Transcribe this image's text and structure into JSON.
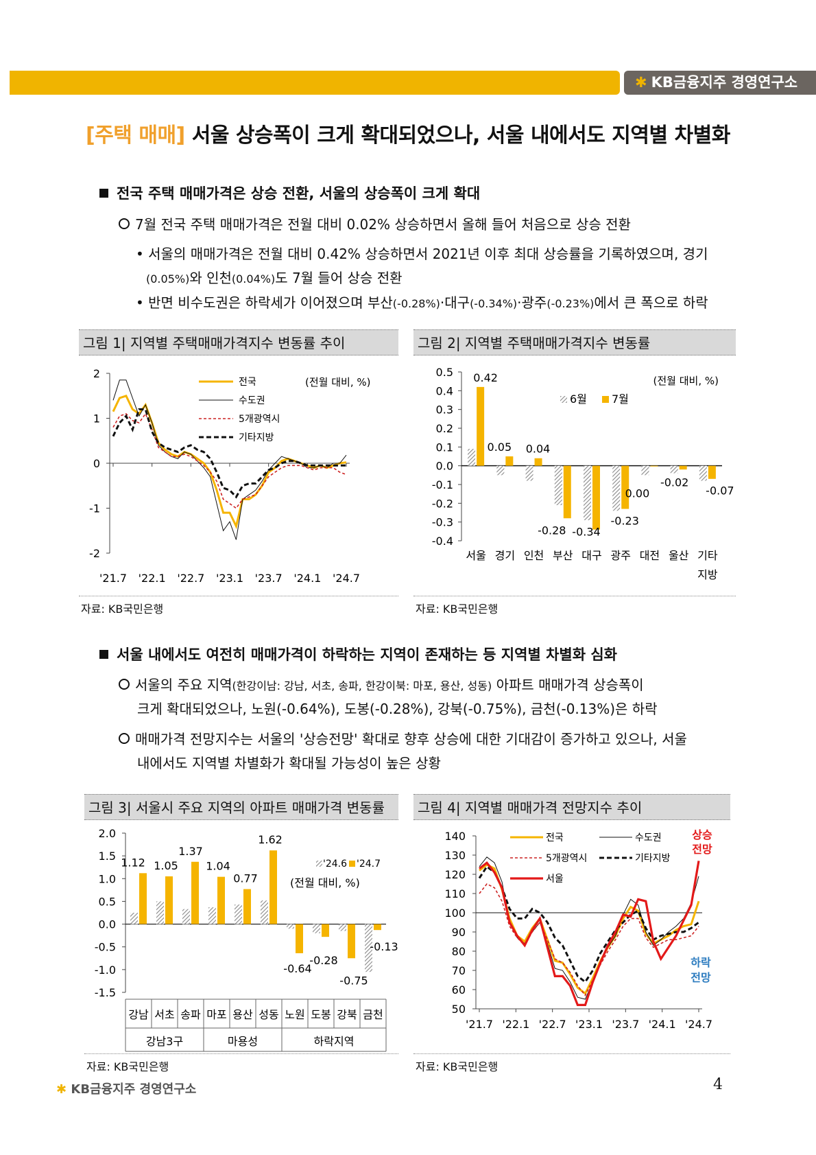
{
  "header": {
    "brand": "KB금융지주 경영연구소",
    "brand_icon": "kb-star-icon"
  },
  "title": {
    "tag": "[주택 매매]",
    "text": "서울 상승폭이 크게 확대되었으나, 서울 내에서도 지역별 차별화"
  },
  "section1": {
    "heading": "전국 주택 매매가격은 상승 전환, 서울의 상승폭이 크게 확대",
    "bullet": "7월 전국 주택 매매가격은 전월 대비 0.02% 상승하면서 올해 들어 처음으로 상승 전환",
    "sub1_line1": "• 서울의 매매가격은 전월 대비 0.42% 상승하면서 2021년 이후 최대 상승률을 기록하였으며, 경기",
    "sub1_line2_a": "(0.05%)",
    "sub1_line2_b": "와 인천",
    "sub1_line2_c": "(0.04%)",
    "sub1_line2_d": "도 7월 들어 상승 전환",
    "sub2_a": "• 반면 비수도권은 하락세가 이어졌으며 부산",
    "sub2_b": "(-0.28%)",
    "sub2_c": "·대구",
    "sub2_d": "(-0.34%)",
    "sub2_e": "·광주",
    "sub2_f": "(-0.23%)",
    "sub2_g": "에서 큰 폭으로 하락"
  },
  "section2": {
    "heading": "서울 내에서도 여전히 매매가격이 하락하는 지역이 존재하는 등 지역별 차별화 심화",
    "b1_a": "서울의 주요 지역",
    "b1_b": "(한강이남: 강남, 서초, 송파, 한강이북: 마포, 용산, 성동)",
    "b1_c": " 아파트 매매가격 상승폭이",
    "b1_line2": "크게 확대되었으나, 노원(-0.64%), 도봉(-0.28%), 강북(-0.75%), 금천(-0.13%)은 하락",
    "b2_line1": "매매가격 전망지수는 서울의 '상승전망' 확대로 향후 상승에 대한 기대감이 증가하고 있으나, 서울",
    "b2_line2": "내에서도 지역별 차별화가 확대될 가능성이 높은 상황"
  },
  "figures": {
    "fig1_title": "그림 1| 지역별 주택매매가격지수 변동률 추이",
    "fig2_title": "그림 2| 지역별 주택매매가격지수 변동률",
    "fig3_title": "그림 3| 서울시 주요 지역의 아파트 매매가격 변동률",
    "fig4_title": "그림 4| 지역별 매매가격 전망지수 추이",
    "source": "자료: KB국민은행"
  },
  "chart_data": [
    {
      "type": "line",
      "title": "지역별 주택매매가격지수 변동률 추이",
      "unit_note": "(전월 대비, %)",
      "ylim": [
        -2,
        2
      ],
      "yticks": [
        "2",
        "1",
        "0",
        "-1",
        "-2"
      ],
      "xticks": [
        "'21.7",
        "'22.1",
        "'22.7",
        "'23.1",
        "'23.7",
        "'24.1",
        "'24.7"
      ],
      "series": [
        {
          "name": "전국",
          "color": "#f5b400",
          "values": [
            1.15,
            1.45,
            1.5,
            1.2,
            1.1,
            1.3,
            0.9,
            0.45,
            0.3,
            0.2,
            0.15,
            0.25,
            0.2,
            0.1,
            0.0,
            -0.2,
            -0.6,
            -1.1,
            -1.1,
            -1.4,
            -0.8,
            -0.8,
            -0.7,
            -0.5,
            -0.2,
            -0.1,
            0.05,
            0.1,
            0.05,
            0.0,
            -0.05,
            -0.1,
            -0.05,
            -0.1,
            -0.05,
            0.0,
            0.02
          ]
        },
        {
          "name": "수도권",
          "color": "#111111",
          "values": [
            1.4,
            1.85,
            1.85,
            1.45,
            1.05,
            1.3,
            0.9,
            0.4,
            0.25,
            0.15,
            0.1,
            0.25,
            0.2,
            0.05,
            -0.1,
            -0.3,
            -0.9,
            -1.5,
            -1.3,
            -1.7,
            -0.8,
            -0.7,
            -0.6,
            -0.4,
            -0.15,
            0.0,
            0.15,
            0.1,
            0.05,
            0.0,
            -0.1,
            -0.1,
            -0.05,
            -0.1,
            0.0,
            0.0,
            0.18
          ]
        },
        {
          "name": "5개광역시",
          "color": "#cc2222",
          "values": [
            0.8,
            1.05,
            1.1,
            0.95,
            0.9,
            1.1,
            0.75,
            0.35,
            0.25,
            0.15,
            0.15,
            0.2,
            0.15,
            0.05,
            -0.05,
            -0.2,
            -0.4,
            -0.8,
            -0.9,
            -1.0,
            -0.8,
            -0.75,
            -0.7,
            -0.5,
            -0.3,
            -0.2,
            -0.1,
            -0.05,
            -0.05,
            -0.05,
            -0.1,
            -0.15,
            -0.1,
            -0.1,
            -0.1,
            -0.2,
            -0.25
          ]
        },
        {
          "name": "기타지방",
          "color": "#111111",
          "values": [
            0.6,
            0.9,
            1.05,
            0.75,
            1.2,
            1.2,
            0.7,
            0.45,
            0.35,
            0.3,
            0.25,
            0.35,
            0.4,
            0.3,
            0.25,
            0.1,
            -0.2,
            -0.55,
            -0.6,
            -0.75,
            -0.5,
            -0.45,
            -0.45,
            -0.3,
            -0.15,
            -0.1,
            0.0,
            0.05,
            0.05,
            0.0,
            -0.05,
            -0.05,
            -0.05,
            -0.05,
            -0.05,
            -0.05,
            -0.05
          ]
        }
      ]
    },
    {
      "type": "bar",
      "title": "지역별 주택매매가격지수 변동률",
      "unit_note": "(전월 대비, %)",
      "ylim": [
        -0.4,
        0.5
      ],
      "yticks": [
        "0.5",
        "0.4",
        "0.3",
        "0.2",
        "0.1",
        "0.0",
        "-0.1",
        "-0.2",
        "-0.3",
        "-0.4"
      ],
      "categories": [
        "서울",
        "경기",
        "인천",
        "부산",
        "대구",
        "광주",
        "대전",
        "울산",
        "기타"
      ],
      "category_sub": [
        "",
        "",
        "",
        "",
        "",
        "",
        "",
        "",
        "지방"
      ],
      "series": [
        {
          "name": "6월",
          "values": [
            0.09,
            -0.05,
            -0.08,
            -0.21,
            -0.29,
            -0.24,
            -0.05,
            -0.04,
            -0.08
          ]
        },
        {
          "name": "7월",
          "values": [
            0.42,
            0.05,
            0.04,
            -0.28,
            -0.34,
            -0.23,
            0.0,
            -0.02,
            -0.07
          ]
        }
      ],
      "data_labels": [
        "0.42",
        "0.05",
        "0.04",
        "-0.28",
        "-0.34",
        "-0.23",
        "0.00",
        "-0.02",
        "-0.07"
      ]
    },
    {
      "type": "bar",
      "title": "서울시 주요 지역의 아파트 매매가격 변동률",
      "unit_note": "(전월 대비, %)",
      "ylim": [
        -1.5,
        2.0
      ],
      "yticks": [
        "2.0",
        "1.5",
        "1.0",
        "0.5",
        "0.0",
        "-0.5",
        "-1.0",
        "-1.5"
      ],
      "categories": [
        "강남",
        "서초",
        "송파",
        "마포",
        "용산",
        "성동",
        "노원",
        "도봉",
        "강북",
        "금천"
      ],
      "groups": [
        "강남3구",
        "마용성",
        "하락지역"
      ],
      "series": [
        {
          "name": "'24.6",
          "values": [
            0.25,
            0.5,
            0.33,
            0.37,
            0.43,
            0.52,
            -0.1,
            -0.2,
            -0.15,
            -1.05
          ]
        },
        {
          "name": "'24.7",
          "values": [
            1.12,
            1.05,
            1.37,
            1.04,
            0.77,
            1.62,
            -0.64,
            -0.28,
            -0.75,
            -0.13
          ]
        }
      ],
      "data_labels": [
        "1.12",
        "1.05",
        "1.37",
        "1.04",
        "0.77",
        "1.62",
        "-0.64",
        "-0.28",
        "-0.75",
        "-0.13"
      ]
    },
    {
      "type": "line",
      "title": "지역별 매매가격 전망지수 추이",
      "ylim": [
        50,
        140
      ],
      "yticks": [
        "140",
        "130",
        "120",
        "110",
        "100",
        "90",
        "80",
        "70",
        "60",
        "50"
      ],
      "xticks": [
        "'21.7",
        "'22.1",
        "'22.7",
        "'23.1",
        "'23.7",
        "'24.1",
        "'24.7"
      ],
      "annotations": {
        "up": "상승\n전망",
        "down": "하락\n전망"
      },
      "series": [
        {
          "name": "전국",
          "color": "#f5b400",
          "values": [
            122,
            125,
            123,
            112,
            97,
            88,
            85,
            92,
            97,
            86,
            75,
            74,
            68,
            61,
            58,
            66,
            75,
            82,
            88,
            97,
            103,
            101,
            89,
            84,
            86,
            88,
            91,
            93,
            94,
            106
          ]
        },
        {
          "name": "수도권",
          "color": "#111111",
          "values": [
            124,
            129,
            126,
            116,
            95,
            87,
            84,
            90,
            95,
            84,
            71,
            70,
            64,
            56,
            55,
            64,
            74,
            82,
            88,
            99,
            107,
            104,
            90,
            83,
            86,
            90,
            93,
            97,
            105,
            119
          ]
        },
        {
          "name": "5개광역시",
          "color": "#cc2222",
          "values": [
            110,
            115,
            113,
            106,
            93,
            87,
            83,
            90,
            95,
            86,
            76,
            74,
            69,
            62,
            57,
            65,
            73,
            80,
            86,
            93,
            97,
            97,
            87,
            82,
            84,
            86,
            86,
            87,
            88,
            93
          ]
        },
        {
          "name": "기타지방",
          "color": "#111111",
          "values": [
            118,
            124,
            121,
            113,
            102,
            97,
            97,
            102,
            100,
            95,
            87,
            83,
            75,
            67,
            64,
            70,
            79,
            85,
            91,
            95,
            99,
            101,
            92,
            86,
            88,
            89,
            90,
            90,
            92,
            95
          ]
        },
        {
          "name": "서울",
          "color": "#e31919",
          "values": [
            123,
            126,
            121,
            113,
            95,
            88,
            83,
            91,
            97,
            82,
            67,
            67,
            62,
            52,
            52,
            64,
            74,
            83,
            90,
            99,
            98,
            107,
            106,
            85,
            76,
            82,
            88,
            96,
            104,
            127
          ]
        }
      ]
    }
  ]
}
